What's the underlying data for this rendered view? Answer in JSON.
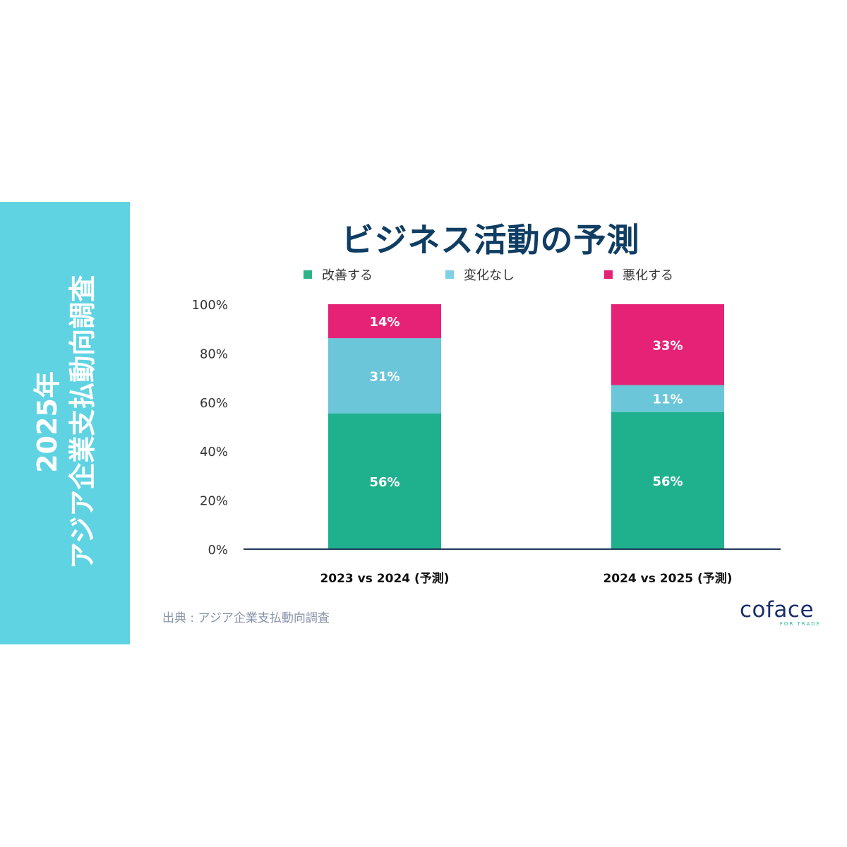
{
  "side_panel": {
    "line1": "2025年",
    "line2": "アジア企業支払動向調査"
  },
  "colors": {
    "improve": "#1fb18d",
    "unchanged": "#6ac6d8",
    "worsen": "#e52276",
    "title": "#0f3d63",
    "panel": "#5fd3e2"
  },
  "legend": [
    {
      "label": "改善する",
      "color": "#2db38a"
    },
    {
      "label": "変化なし",
      "color": "#7fd0e4"
    },
    {
      "label": "悪化する",
      "color": "#e52276"
    }
  ],
  "source": "出典 : アジア企業支払動向調査",
  "logo": {
    "word": "coface",
    "tagline": "FOR TRADE"
  },
  "chart_data": {
    "type": "bar",
    "stacked": true,
    "title": "ビジネス活動の予測",
    "categories": [
      "2023 vs 2024 (予測)",
      "2024 vs 2025 (予測)"
    ],
    "series": [
      {
        "name": "改善する",
        "values": [
          56,
          56
        ],
        "labels": [
          "56%",
          "56%"
        ]
      },
      {
        "name": "変化なし",
        "values": [
          31,
          11
        ],
        "labels": [
          "31%",
          "11%"
        ]
      },
      {
        "name": "悪化する",
        "values": [
          14,
          33
        ],
        "labels": [
          "14%",
          "33%"
        ]
      }
    ],
    "y_ticks": [
      "0%",
      "20%",
      "40%",
      "60%",
      "80%",
      "100%"
    ],
    "ylim": [
      0,
      100
    ],
    "grid": false,
    "legend": "top"
  }
}
